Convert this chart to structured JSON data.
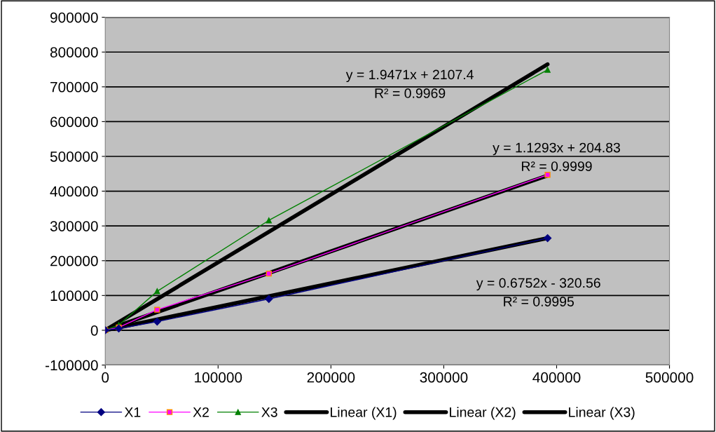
{
  "chart_data": {
    "type": "line",
    "xlim": [
      0,
      500000
    ],
    "xticks": [
      0,
      100000,
      200000,
      300000,
      400000,
      500000
    ],
    "ylim": [
      -100000,
      900000
    ],
    "yticks": [
      -100000,
      0,
      100000,
      200000,
      300000,
      400000,
      500000,
      600000,
      700000,
      800000,
      900000
    ],
    "grid": "y",
    "legend": "bottom",
    "line_style": "solid",
    "series": [
      {
        "name": "X1",
        "marker": "diamond",
        "color": "#000080",
        "x": [
          0,
          12000,
          46000,
          145000,
          392000
        ],
        "values": [
          0,
          5000,
          25000,
          90000,
          265000
        ]
      },
      {
        "name": "X2",
        "marker": "square",
        "color": "#ff00ff",
        "x": [
          0,
          12000,
          46000,
          145000,
          392000
        ],
        "values": [
          0,
          8000,
          59000,
          163000,
          447000
        ]
      },
      {
        "name": "X3",
        "marker": "triangle",
        "color": "#008000",
        "x": [
          0,
          12000,
          46000,
          145000,
          392000
        ],
        "values": [
          0,
          15000,
          112000,
          316000,
          749000
        ]
      },
      {
        "name": "Linear (X1)",
        "marker": "none",
        "color": "#000000",
        "x": [
          0,
          392000
        ],
        "values": [
          0,
          265000
        ]
      },
      {
        "name": "Linear (X2)",
        "marker": "none",
        "color": "#000000",
        "x": [
          0,
          392000
        ],
        "values": [
          0,
          445000
        ]
      },
      {
        "name": "Linear (X3)",
        "marker": "none",
        "color": "#000000",
        "x": [
          0,
          392000
        ],
        "values": [
          0,
          765000
        ]
      }
    ],
    "annotations": [
      "y = 1.9471x + 2107.4\nR² = 0.9969",
      "y = 1.1293x + 204.83\nR² = 0.9999",
      "y = 0.6752x - 320.56\nR² = 0.9995"
    ]
  }
}
